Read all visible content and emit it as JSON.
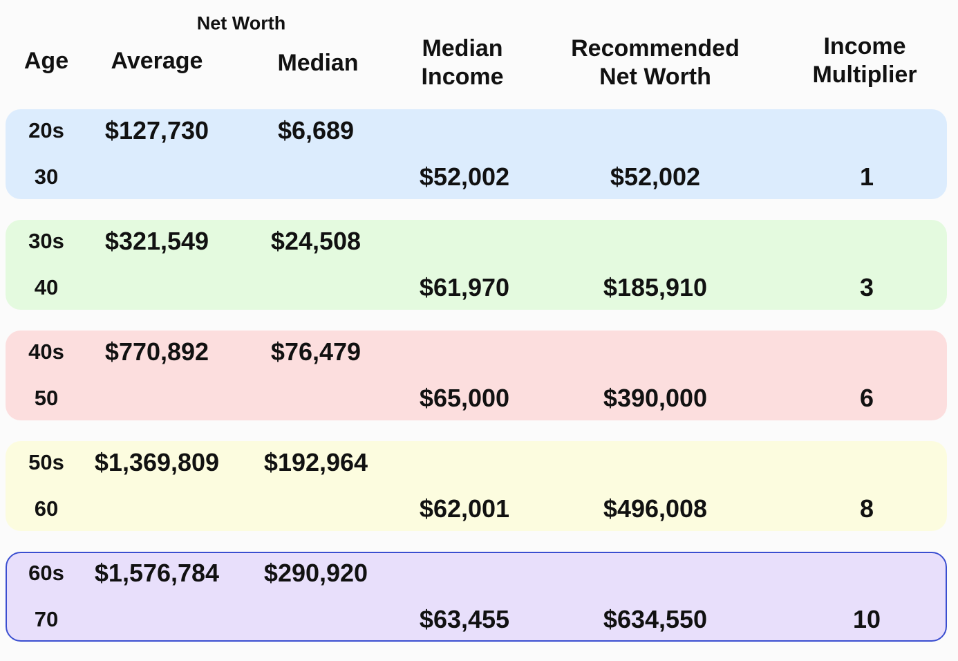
{
  "header": {
    "group": "Net Worth",
    "columns": [
      [
        "Age"
      ],
      [
        "Average"
      ],
      [
        "Median"
      ],
      [
        "Median",
        "Income"
      ],
      [
        "Recommended",
        "Net Worth"
      ],
      [
        "Income",
        "Multiplier"
      ]
    ]
  },
  "table": {
    "rows": [
      {
        "decade": "20s",
        "average": "$127,730",
        "median": "$6,689",
        "age": "30",
        "median_income": "$52,002",
        "recommended": "$52,002",
        "multiplier": "1"
      },
      {
        "decade": "30s",
        "average": "$321,549",
        "median": "$24,508",
        "age": "40",
        "median_income": "$61,970",
        "recommended": "$185,910",
        "multiplier": "3"
      },
      {
        "decade": "40s",
        "average": "$770,892",
        "median": "$76,479",
        "age": "50",
        "median_income": "$65,000",
        "recommended": "$390,000",
        "multiplier": "6"
      },
      {
        "decade": "50s",
        "average": "$1,369,809",
        "median": "$192,964",
        "age": "60",
        "median_income": "$62,001",
        "recommended": "$496,008",
        "multiplier": "8"
      },
      {
        "decade": "60s",
        "average": "$1,576,784",
        "median": "$290,920",
        "age": "70",
        "median_income": "$63,455",
        "recommended": "$634,550",
        "multiplier": "10"
      }
    ]
  }
}
